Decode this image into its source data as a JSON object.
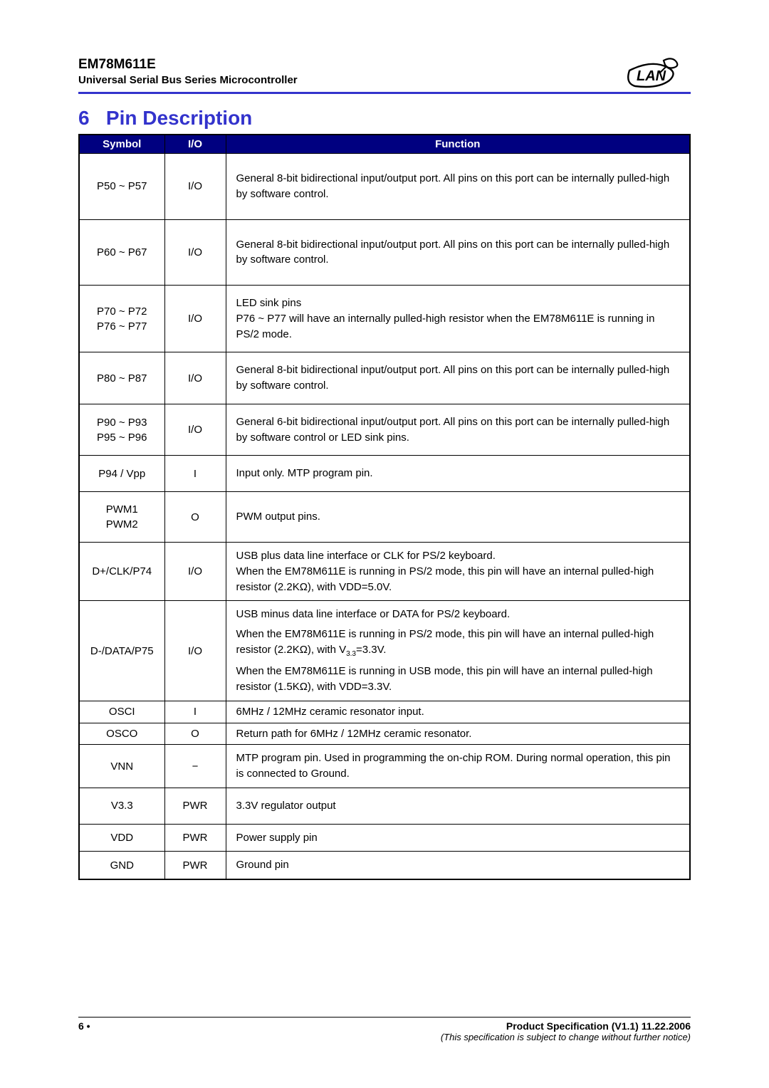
{
  "header": {
    "part_number": "EM78M611E",
    "subtitle": "Universal Serial Bus Series Microcontroller",
    "logo_text": "LAN"
  },
  "section": {
    "number": "6",
    "title": "Pin Description"
  },
  "table": {
    "columns": {
      "symbol": "Symbol",
      "io": "I/O",
      "function": "Function"
    },
    "rows": [
      {
        "row_class": "tall",
        "symbol": "P50 ~ P57",
        "io": "I/O",
        "function_html": "General 8-bit bidirectional input/output port.  All pins on this port can be internally pulled-high by software control."
      },
      {
        "row_class": "tall",
        "symbol": "P60 ~ P67",
        "io": "I/O",
        "function_html": "General 8-bit bidirectional input/output port.  All pins on this port can be internally pulled-high by software control."
      },
      {
        "row_class": "med",
        "symbol": "P70 ~ P72<br>P76 ~ P77",
        "io": "I/O",
        "function_html": "LED sink pins<br>P76 ~ P77 will have an internally pulled-high resistor when the EM78M611E is running in PS/2 mode."
      },
      {
        "row_class": "med",
        "symbol": "P80 ~ P87",
        "io": "I/O",
        "function_html": "General 8-bit bidirectional input/output port.  All pins on this port can be internally pulled-high by software control."
      },
      {
        "row_class": "med",
        "symbol": "P90 ~ P93<br>P95 ~ P96",
        "io": "I/O",
        "function_html": "General 6-bit bidirectional input/output port.  All pins on this port can be internally pulled-high by software control or LED sink pins."
      },
      {
        "row_class": "med",
        "symbol": "P94 / Vpp",
        "io": "I",
        "function_html": "Input only.  MTP program pin."
      },
      {
        "row_class": "med",
        "symbol": "PWM1<br>PWM2",
        "io": "O",
        "function_html": "PWM output pins."
      },
      {
        "row_class": "medshort",
        "symbol": "D+/CLK/P74",
        "io": "I/O",
        "function_html": "USB plus data line interface or CLK for PS/2 keyboard.<br>When the EM78M611E is running in PS/2 mode, this pin will have an internal pulled-high resistor (2.2KΩ), with VDD=5.0V."
      },
      {
        "row_class": "medshort",
        "symbol": "D-/DATA/P75",
        "io": "I/O",
        "function_html": "<div class=\"func-para\">USB minus data line interface or DATA for PS/2 keyboard.</div><div class=\"func-para\">When the EM78M611E is running in PS/2 mode, this pin will have an internal pulled-high resistor (2.2KΩ), with V<span class=\"sub\">3.3</span>=3.3V.</div><div class=\"func-para\">When the EM78M611E is running in USB mode, this pin will have an internal pulled-high resistor (1.5KΩ), with VDD=3.3V.</div>"
      },
      {
        "row_class": "short",
        "symbol": "OSCI",
        "io": "I",
        "function_html": "6MHz / 12MHz ceramic resonator input."
      },
      {
        "row_class": "short",
        "symbol": "OSCO",
        "io": "O",
        "function_html": "Return path for 6MHz / 12MHz ceramic resonator."
      },
      {
        "row_class": "medshort",
        "symbol": "VNN",
        "io": "−",
        "function_html": "MTP program pin.  Used in programming the on-chip ROM.  During normal operation, this pin is connected to Ground."
      },
      {
        "row_class": "med",
        "symbol": "V3.3",
        "io": "PWR",
        "function_html": "3.3V regulator output"
      },
      {
        "row_class": "medshort",
        "symbol": "VDD",
        "io": "PWR",
        "function_html": "Power supply pin"
      },
      {
        "row_class": "medshort",
        "symbol": "GND",
        "io": "PWR",
        "function_html": "Ground pin"
      }
    ]
  },
  "footer": {
    "page": "6 •",
    "spec_version": "Product Specification (V1.1) 11.22.2006",
    "notice": "(This specification is subject to change without further notice)"
  },
  "colors": {
    "header_divider": "#3333cc",
    "section_title": "#3333cc",
    "table_header_bg": "#000080",
    "table_header_fg": "#ffffff",
    "border": "#000000",
    "text": "#000000",
    "background": "#ffffff"
  }
}
